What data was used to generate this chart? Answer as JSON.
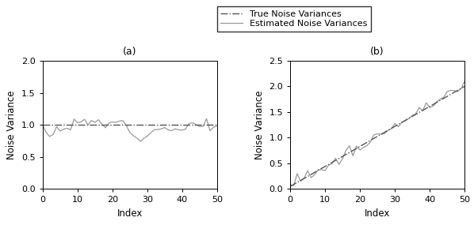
{
  "title_a": "(a)",
  "title_b": "(b)",
  "xlabel": "Index",
  "ylabel": "Noise Variance",
  "legend_true": "True Noise Variances",
  "legend_est": "Estimated Noise Variances",
  "xlim": [
    0,
    50
  ],
  "ylim_a": [
    0,
    2
  ],
  "ylim_b": [
    0,
    2.5
  ],
  "yticks_a": [
    0,
    0.5,
    1,
    1.5,
    2
  ],
  "yticks_b": [
    0,
    0.5,
    1,
    1.5,
    2,
    2.5
  ],
  "xticks": [
    0,
    10,
    20,
    30,
    40,
    50
  ],
  "true_color": "#555555",
  "est_color": "#999999",
  "n_points": 51,
  "seed_a": 12,
  "seed_b": 5
}
